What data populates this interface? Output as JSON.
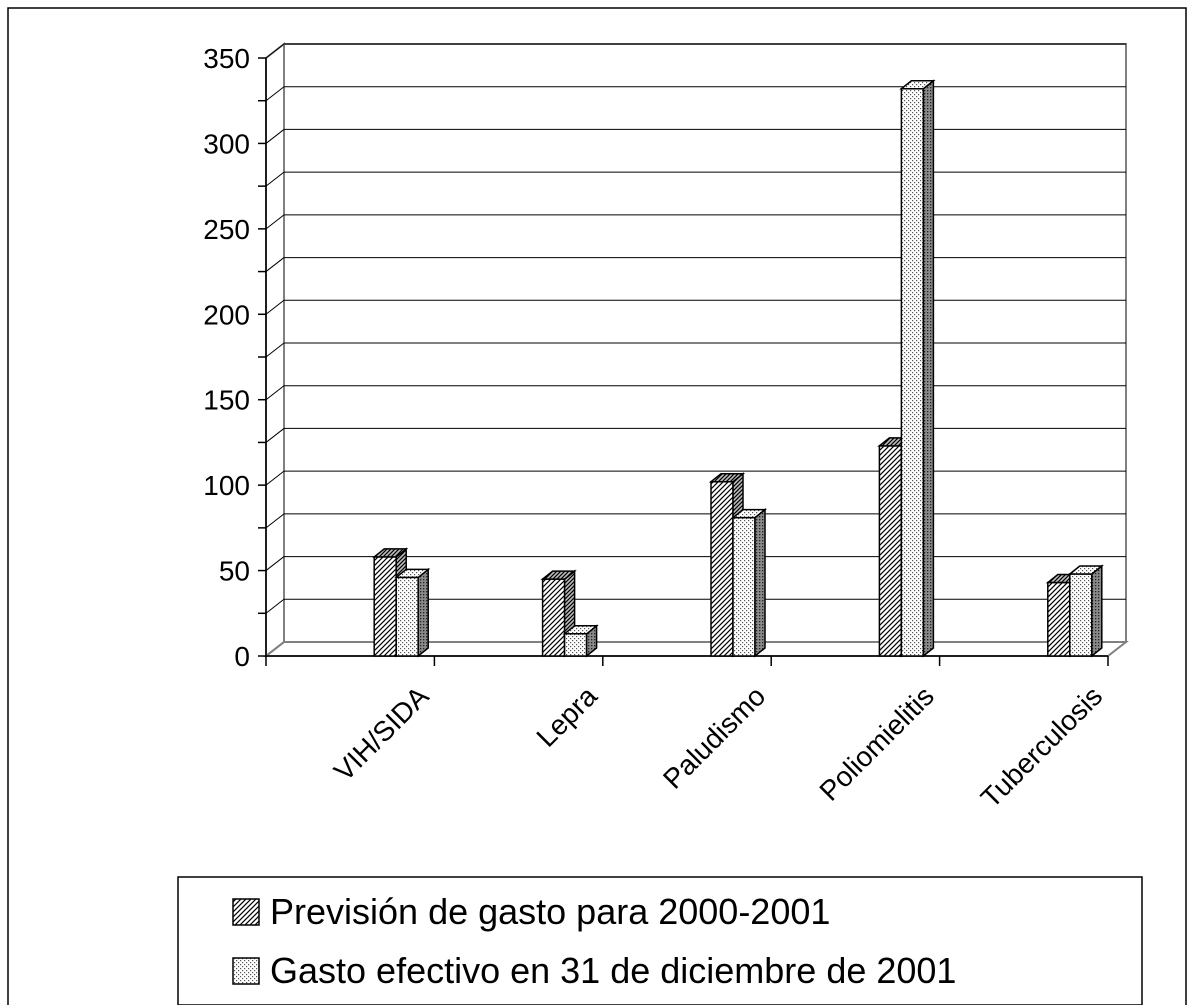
{
  "chart_data": {
    "type": "bar",
    "title": "",
    "xlabel": "",
    "ylabel": "",
    "categories": [
      "VIH/SIDA",
      "Lepra",
      "Paludismo",
      "Poliomielitis",
      "Tuberculosis"
    ],
    "series": [
      {
        "name": "Previsión de gasto para 2000-2001",
        "values": [
          58,
          45,
          102,
          123,
          43
        ],
        "pattern": "diagonal-hatch"
      },
      {
        "name": "Gasto efectivo en 31 de diciembre de 2001",
        "values": [
          46,
          13,
          81,
          332,
          48
        ],
        "pattern": "dotted-grid"
      }
    ],
    "ylim": [
      0,
      350
    ],
    "yticks": [
      0,
      50,
      100,
      150,
      200,
      250,
      300,
      350
    ],
    "grid": true,
    "legend_position": "bottom",
    "style": "3d-column"
  }
}
